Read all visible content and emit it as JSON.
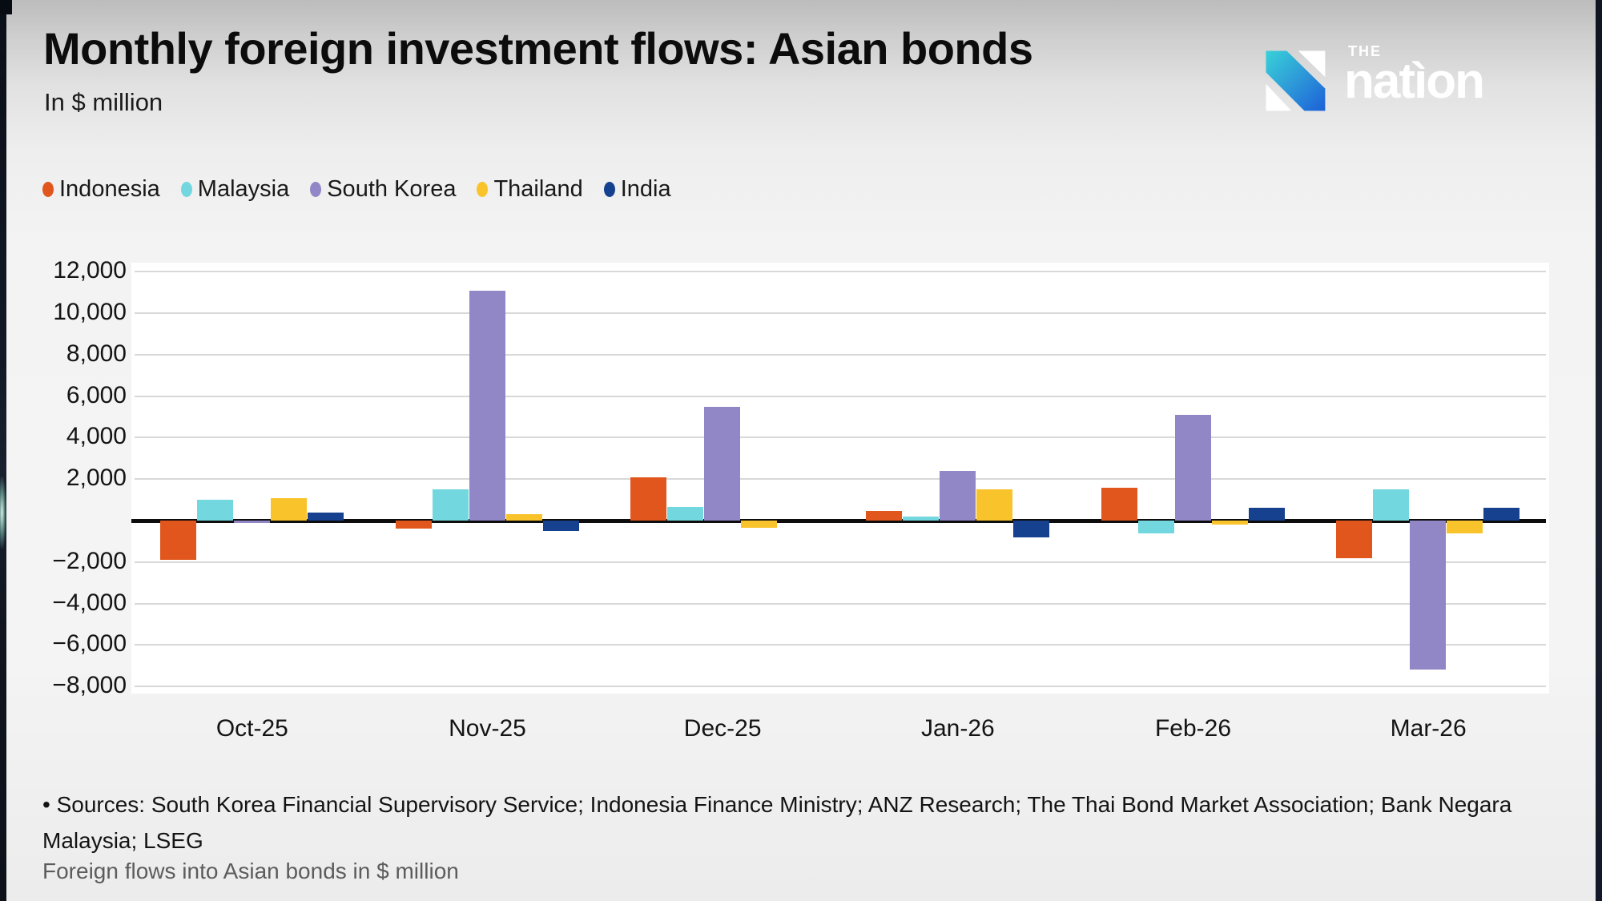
{
  "header": {
    "title": "Monthly foreign investment flows: Asian bonds",
    "subtitle": "In $ million"
  },
  "logo": {
    "the": "THE",
    "name": "natìon",
    "mark_gradient_start": "#38d2d8",
    "mark_gradient_end": "#1c60d8",
    "text_color": "#ffffff"
  },
  "chart_data": {
    "type": "bar",
    "title": "Monthly foreign investment flows: Asian bonds",
    "unit": "$ million",
    "categories": [
      "Oct-25",
      "Nov-25",
      "Dec-25",
      "Jan-26",
      "Feb-26",
      "Mar-26"
    ],
    "series": [
      {
        "name": "Indonesia",
        "color": "#e0561c",
        "values": [
          -1900,
          -400,
          2100,
          450,
          1600,
          -1800
        ]
      },
      {
        "name": "Malaysia",
        "color": "#72d7de",
        "values": [
          1000,
          1500,
          650,
          200,
          -600,
          1500
        ]
      },
      {
        "name": "South Korea",
        "color": "#9186c6",
        "values": [
          -100,
          11100,
          5500,
          2400,
          5100,
          -7200
        ]
      },
      {
        "name": "Thailand",
        "color": "#f9c32b",
        "values": [
          1100,
          300,
          -350,
          1500,
          -200,
          -600
        ]
      },
      {
        "name": "India",
        "color": "#16418f",
        "values": [
          400,
          -500,
          0,
          -800,
          600,
          600
        ]
      }
    ],
    "ylim": [
      -8000,
      12000
    ],
    "ytick_step": 2000,
    "yticks_labeled": [
      12000,
      10000,
      8000,
      6000,
      4000,
      2000,
      -2000,
      -4000,
      -6000,
      -8000
    ],
    "zero_axis": true,
    "grid": true,
    "legend_position": "top-left",
    "gridline_color": "#d8d8d8",
    "zero_axis_color": "#0d0d0d"
  },
  "footer": {
    "sources_line1": "• Sources: South Korea Financial Supervisory Service; Indonesia Finance Ministry; ANZ Research; The Thai Bond Market Association; Bank Negara",
    "sources_line2": "Malaysia; LSEG",
    "caption": "Foreign flows into Asian bonds in $ million"
  }
}
